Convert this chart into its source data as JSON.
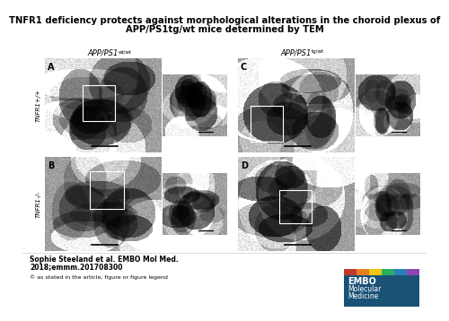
{
  "title_line1": "TNFR1 deficiency protects against morphological alterations in the choroid plexus of",
  "title_line2": "APP/PS1tg/wt mice determined by TEM",
  "title_fontsize": 7.2,
  "author_line1": "Sophie Steeland et al. EMBO Mol Med.",
  "author_line2": "2018;emmm.201708300",
  "copyright_text": "© as stated in the article, figure or figure legend",
  "col_label_left": "APP/PS1",
  "col_label_left_sup": "wt/wt",
  "col_label_right": "APP/PS1",
  "col_label_right_sup": "tg/wt",
  "row_label_top": "TNFR1+/+",
  "row_label_bot": "TNFR1-/-",
  "bg_color": "#ffffff",
  "embo_bg": "#1a5276",
  "bar_colors": [
    "#c0392b",
    "#e67e22",
    "#f1c40f",
    "#27ae60",
    "#2980b9",
    "#8e44ad"
  ]
}
